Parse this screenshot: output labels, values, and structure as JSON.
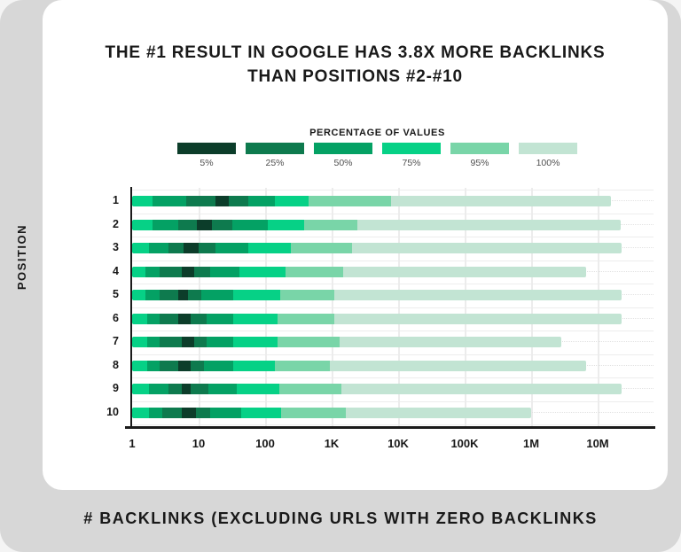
{
  "page": {
    "title_line1": "THE #1 RESULT IN GOOGLE HAS 3.8X MORE BACKLINKS",
    "title_line2": "THAN POSITIONS #2-#10",
    "y_axis_title": "POSITION",
    "x_axis_title": "# BACKLINKS (EXCLUDING URLS WITH ZERO BACKLINKS"
  },
  "legend": {
    "title": "PERCENTAGE OF VALUES",
    "items": [
      {
        "label": "5%",
        "color": "#0c3d2a"
      },
      {
        "label": "25%",
        "color": "#0e7a4e"
      },
      {
        "label": "50%",
        "color": "#04a164"
      },
      {
        "label": "75%",
        "color": "#06d186"
      },
      {
        "label": "95%",
        "color": "#79d5a8"
      },
      {
        "label": "100%",
        "color": "#c2e4d3"
      }
    ]
  },
  "chart_data": {
    "type": "bar",
    "subtype": "nested-percentile-range-bars",
    "title": "THE #1 RESULT IN GOOGLE HAS 3.8X MORE BACKLINKS THAN POSITIONS #2-#10",
    "xlabel": "# BACKLINKS (EXCLUDING URLS WITH ZERO BACKLINKS",
    "ylabel": "POSITION",
    "x_scale": "log",
    "x_ticks": [
      "1",
      "10",
      "100",
      "1K",
      "10K",
      "100K",
      "1M",
      "10M"
    ],
    "x_tick_values": [
      1,
      10,
      100,
      1000,
      10000,
      100000,
      1000000,
      10000000
    ],
    "x_range": [
      1,
      70000000
    ],
    "grid": true,
    "legend_position": "top",
    "segment_percentile_order": [
      "75%",
      "50%",
      "25%",
      "5%",
      "25%",
      "50%",
      "75%",
      "95%",
      "100%"
    ],
    "positions": [
      {
        "position": "1",
        "range_boundaries": [
          1,
          2,
          6.5,
          18,
          28,
          56,
          140,
          450,
          7800,
          16000000
        ]
      },
      {
        "position": "2",
        "range_boundaries": [
          1,
          2,
          5,
          9.5,
          16,
          32,
          110,
          390,
          2400,
          22000000
        ]
      },
      {
        "position": "3",
        "range_boundaries": [
          1,
          1.8,
          3.5,
          6,
          10,
          18,
          56,
          240,
          2000,
          23000000
        ]
      },
      {
        "position": "4",
        "range_boundaries": [
          1,
          1.6,
          2.6,
          5.5,
          8.5,
          15,
          41,
          200,
          1500,
          6800000
        ]
      },
      {
        "position": "5",
        "range_boundaries": [
          1,
          1.6,
          2.6,
          5,
          7,
          11,
          33,
          170,
          1100,
          23000000
        ]
      },
      {
        "position": "6",
        "range_boundaries": [
          1,
          1.7,
          2.6,
          5,
          7.5,
          13,
          33,
          155,
          1100,
          23000000
        ]
      },
      {
        "position": "7",
        "range_boundaries": [
          1,
          1.7,
          2.6,
          5.5,
          8.5,
          13,
          33,
          155,
          1300,
          2800000
        ]
      },
      {
        "position": "8",
        "range_boundaries": [
          1,
          1.7,
          2.6,
          5,
          7.5,
          12,
          33,
          140,
          950,
          6800000
        ]
      },
      {
        "position": "9",
        "range_boundaries": [
          1,
          1.8,
          3.5,
          5.5,
          7.5,
          14,
          38,
          165,
          1400,
          23000000
        ]
      },
      {
        "position": "10",
        "range_boundaries": [
          1,
          1.8,
          2.8,
          5.5,
          9,
          15,
          44,
          175,
          1650,
          1000000
        ]
      }
    ]
  },
  "colors": {
    "frame_gray": "#d7d7d7",
    "card_white": "#ffffff",
    "text_dark": "#191919",
    "gridline": "#ececec",
    "pct_5": "#0c3d2a",
    "pct_25": "#0e7a4e",
    "pct_50": "#04a164",
    "pct_75": "#06d186",
    "pct_95": "#79d5a8",
    "pct_100": "#c2e4d3"
  }
}
